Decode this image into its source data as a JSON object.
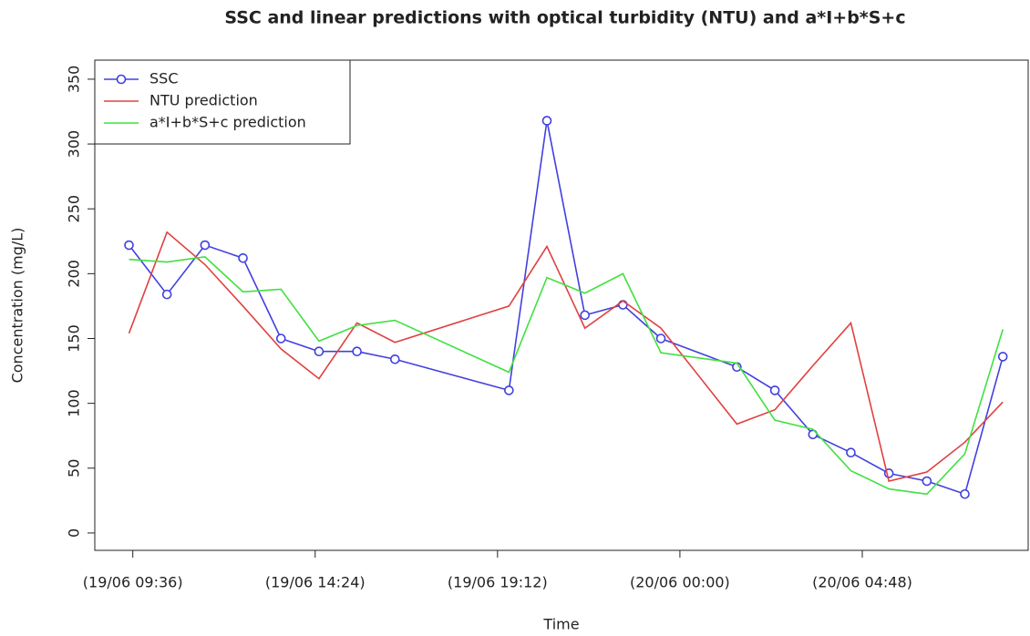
{
  "chart_data": {
    "type": "line",
    "title": "SSC and linear predictions with optical turbidity (NTU) and a*I+b*S+c",
    "x_label": "Time",
    "y_label": "Concentration (mg/L)",
    "x": [
      "19/06 09:30",
      "19/06 10:30",
      "19/06 11:30",
      "19/06 12:30",
      "19/06 13:30",
      "19/06 14:30",
      "19/06 15:30",
      "19/06 16:30",
      "19/06 19:30",
      "19/06 20:30",
      "19/06 21:30",
      "19/06 22:30",
      "19/06 23:30",
      "20/06 01:30",
      "20/06 02:30",
      "20/06 03:30",
      "20/06 04:30",
      "20/06 05:30",
      "20/06 06:30",
      "20/06 07:30",
      "20/06 08:30"
    ],
    "series": [
      {
        "name": "SSC",
        "color": "#4040e0",
        "markers": true,
        "values": [
          222,
          184,
          222,
          212,
          150,
          140,
          140,
          134,
          110,
          318,
          168,
          176,
          150,
          128,
          110,
          76,
          62,
          46,
          40,
          30,
          136
        ]
      },
      {
        "name": "NTU prediction",
        "color": "#e04040",
        "markers": false,
        "values": [
          154,
          232,
          207,
          175,
          142,
          119,
          162,
          147,
          175,
          221,
          158,
          179,
          158,
          84,
          95,
          129,
          162,
          40,
          47,
          70,
          101
        ]
      },
      {
        "name": "a*I+b*S+c prediction",
        "color": "#40e040",
        "markers": false,
        "values": [
          211,
          209,
          213,
          186,
          188,
          148,
          160,
          164,
          124,
          197,
          185,
          200,
          139,
          131,
          87,
          80,
          48,
          34,
          30,
          61,
          157
        ]
      }
    ],
    "xlim": [
      "19/06 08:36",
      "20/06 09:10"
    ],
    "xticks": [
      {
        "value": "19/06 09:36",
        "label": "(19/06 09:36)"
      },
      {
        "value": "19/06 14:24",
        "label": "(19/06 14:24)"
      },
      {
        "value": "19/06 19:12",
        "label": "(19/06 19:12)"
      },
      {
        "value": "20/06 00:00",
        "label": "(20/06 00:00)"
      },
      {
        "value": "20/06 04:48",
        "label": "(20/06 04:48)"
      }
    ],
    "ylim": [
      -13.4,
      364.7
    ],
    "yticks": [
      0,
      50,
      100,
      150,
      200,
      250,
      300,
      350
    ],
    "legend": "top-left"
  }
}
